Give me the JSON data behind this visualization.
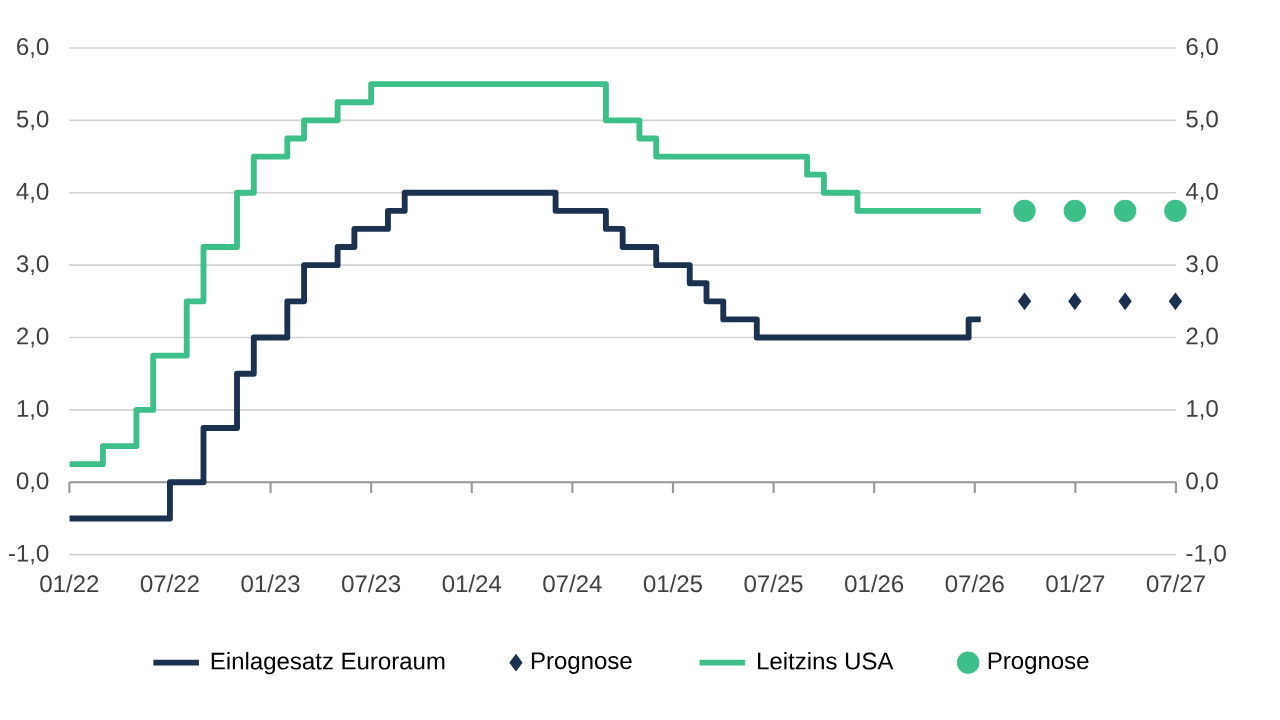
{
  "chart_data": {
    "type": "step",
    "legend": "bottom",
    "grid": "y",
    "xlim": [
      "2022-01",
      "2027-07"
    ],
    "xticks": [
      {
        "value": "2022-01",
        "label": "01/22"
      },
      {
        "value": "2022-07",
        "label": "07/22"
      },
      {
        "value": "2023-01",
        "label": "01/23"
      },
      {
        "value": "2023-07",
        "label": "07/23"
      },
      {
        "value": "2024-01",
        "label": "01/24"
      },
      {
        "value": "2024-07",
        "label": "07/24"
      },
      {
        "value": "2025-01",
        "label": "01/25"
      },
      {
        "value": "2025-07",
        "label": "07/25"
      },
      {
        "value": "2026-01",
        "label": "01/26"
      },
      {
        "value": "2026-07",
        "label": "07/26"
      },
      {
        "value": "2027-01",
        "label": "01/27"
      },
      {
        "value": "2027-07",
        "label": "07/27"
      }
    ],
    "ylim": [
      -1,
      6
    ],
    "yticks": [
      {
        "value": -1,
        "label": "-1,0"
      },
      {
        "value": 0,
        "label": "0,0"
      },
      {
        "value": 1,
        "label": "1,0"
      },
      {
        "value": 2,
        "label": "2,0"
      },
      {
        "value": 3,
        "label": "3,0"
      },
      {
        "value": 4,
        "label": "4,0"
      },
      {
        "value": 5,
        "label": "5,0"
      },
      {
        "value": 6,
        "label": "6,0"
      }
    ],
    "y2lim": [
      -1,
      6
    ],
    "y2ticks": [
      {
        "value": -1,
        "label": "-1,0"
      },
      {
        "value": 0,
        "label": "0,0"
      },
      {
        "value": 1,
        "label": "1,0"
      },
      {
        "value": 2,
        "label": "2,0"
      },
      {
        "value": 3,
        "label": "3,0"
      },
      {
        "value": 4,
        "label": "4,0"
      },
      {
        "value": 5,
        "label": "5,0"
      },
      {
        "value": 6,
        "label": "6,0"
      }
    ],
    "series": [
      {
        "name": "Einlagesatz Euroraum",
        "color": "#1b3150",
        "x": [
          "2022-01",
          "2022-07",
          "2022-09",
          "2022-11",
          "2022-12",
          "2023-02",
          "2023-03",
          "2023-05",
          "2023-06",
          "2023-08",
          "2023-09",
          "2024-06",
          "2024-09",
          "2024-10",
          "2024-12",
          "2025-02",
          "2025-03",
          "2025-04",
          "2025-06",
          "2026-06-20",
          "2026-07-12"
        ],
        "values": [
          -0.5,
          0,
          0.75,
          1.5,
          2,
          2.5,
          3,
          3.25,
          3.5,
          3.75,
          4,
          3.75,
          3.5,
          3.25,
          3,
          2.75,
          2.5,
          2.25,
          2,
          2.25,
          2.25
        ]
      },
      {
        "name": "Prognose",
        "color": "#1b3150",
        "type": "scatter",
        "marker": "diamond",
        "x": [
          "2026-09-30",
          "2026-12-31",
          "2027-03-31",
          "2027-06-30"
        ],
        "values": [
          2.5,
          2.5,
          2.5,
          2.5
        ]
      },
      {
        "name": "Leitzins USA",
        "color": "#3dbf8a",
        "x": [
          "2022-01",
          "2022-03",
          "2022-05",
          "2022-06",
          "2022-08",
          "2022-09",
          "2022-11",
          "2022-12",
          "2023-02",
          "2023-03",
          "2023-05",
          "2023-07",
          "2024-09",
          "2024-11",
          "2024-12",
          "2025-09",
          "2025-10",
          "2025-12",
          "2026-07-12"
        ],
        "values": [
          0.25,
          0.5,
          1,
          1.75,
          2.5,
          3.25,
          4,
          4.5,
          4.75,
          5,
          5.25,
          5.5,
          5,
          4.75,
          4.5,
          4.25,
          4,
          3.75,
          3.75
        ]
      },
      {
        "name": "Prognose",
        "color": "#3dbf8a",
        "type": "scatter",
        "marker": "circle",
        "x": [
          "2026-09-30",
          "2026-12-31",
          "2027-03-31",
          "2027-06-30"
        ],
        "values": [
          3.75,
          3.75,
          3.75,
          3.75
        ]
      }
    ]
  }
}
